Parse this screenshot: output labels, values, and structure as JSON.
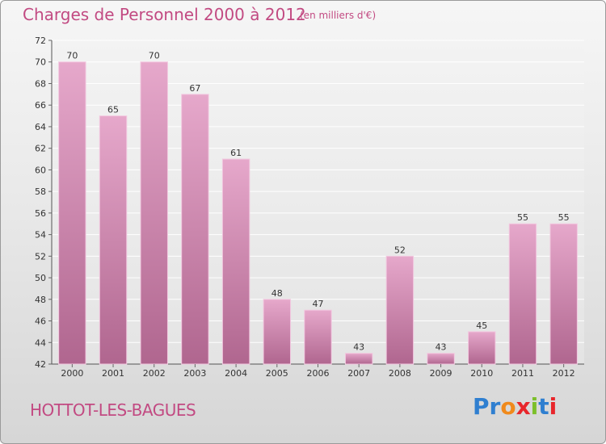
{
  "header": {
    "title": "Charges de Personnel 2000 à 2012",
    "subtitle": "(en milliers d'€)"
  },
  "footer": {
    "commune": "HOTTOT-LES-BAGUES",
    "logo": "Proxiti"
  },
  "colors": {
    "accent": "#c24a82",
    "bar_light": "#e6a8cb",
    "bar_dark": "#b0668f",
    "logo_letters": [
      "#2f7fd0",
      "#2f7fd0",
      "#f08a1c",
      "#e8262b",
      "#7cbf2a",
      "#2f7fd0",
      "#e8262b"
    ]
  },
  "chart_data": {
    "type": "bar",
    "categories": [
      "2000",
      "2001",
      "2002",
      "2003",
      "2004",
      "2005",
      "2006",
      "2007",
      "2008",
      "2009",
      "2010",
      "2011",
      "2012"
    ],
    "values": [
      70,
      65,
      70,
      67,
      61,
      48,
      47,
      43,
      52,
      43,
      45,
      55,
      55
    ],
    "ylim": [
      42,
      72
    ],
    "yticks": [
      42,
      44,
      46,
      48,
      50,
      52,
      54,
      56,
      58,
      60,
      62,
      64,
      66,
      68,
      70,
      72
    ],
    "grid": true,
    "data_labels": true
  }
}
